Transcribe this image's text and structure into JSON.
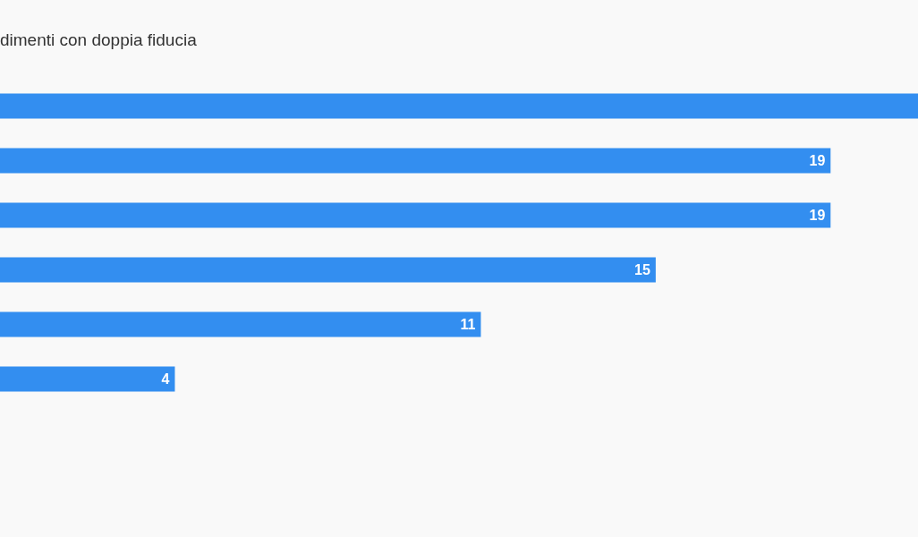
{
  "chart_data": {
    "type": "bar",
    "orientation": "horizontal",
    "title": "dimenti con doppia fiducia",
    "categories": [
      null,
      null,
      null,
      null,
      null,
      null
    ],
    "values": [
      21,
      19,
      19,
      15,
      11,
      4
    ],
    "value_labels": [
      null,
      "19",
      "19",
      "15",
      "11",
      "4"
    ],
    "color": "#338ef0",
    "tick_labels": false
  }
}
